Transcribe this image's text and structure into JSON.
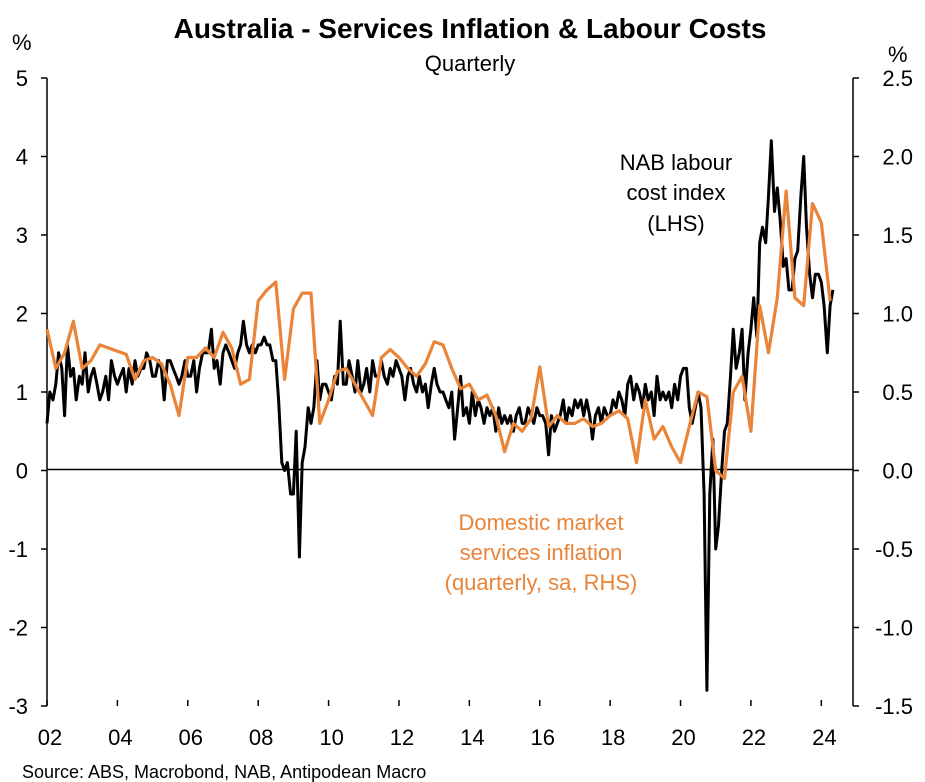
{
  "chart_data": {
    "type": "line",
    "title": "Australia - Services Inflation & Labour Costs",
    "subtitle": "Quarterly",
    "source": "Source: ABS, Macrobond, NAB, Antipodean Macro",
    "left_axis": {
      "unit": "%",
      "range": [
        -3,
        5
      ],
      "ticks": [
        "5",
        "4",
        "3",
        "2",
        "1",
        "0",
        "-1",
        "-2",
        "-3"
      ]
    },
    "right_axis": {
      "unit": "%",
      "range": [
        -1.5,
        2.5
      ],
      "ticks": [
        "2.5",
        "2.0",
        "1.5",
        "1.0",
        "0.5",
        "0.0",
        "-0.5",
        "-1.0",
        "-1.5"
      ]
    },
    "x_axis": {
      "range": [
        2002,
        2024.9
      ],
      "ticks": [
        "02",
        "04",
        "06",
        "08",
        "10",
        "12",
        "14",
        "16",
        "18",
        "20",
        "22",
        "24"
      ]
    },
    "series": [
      {
        "name": "NAB labour cost index",
        "axis": "left",
        "color": "#000000",
        "label": [
          "NAB labour",
          "cost index",
          "(LHS)"
        ],
        "x": [
          2002.0,
          2002.08,
          2002.17,
          2002.25,
          2002.33,
          2002.42,
          2002.5,
          2002.58,
          2002.67,
          2002.75,
          2002.83,
          2002.92,
          2003.0,
          2003.08,
          2003.17,
          2003.25,
          2003.33,
          2003.42,
          2003.5,
          2003.58,
          2003.67,
          2003.75,
          2003.83,
          2003.92,
          2004.0,
          2004.08,
          2004.17,
          2004.25,
          2004.33,
          2004.42,
          2004.5,
          2004.58,
          2004.67,
          2004.75,
          2004.83,
          2004.92,
          2005.0,
          2005.08,
          2005.17,
          2005.25,
          2005.33,
          2005.42,
          2005.5,
          2005.58,
          2005.67,
          2005.75,
          2005.83,
          2005.92,
          2006.0,
          2006.08,
          2006.17,
          2006.25,
          2006.33,
          2006.42,
          2006.5,
          2006.58,
          2006.67,
          2006.75,
          2006.83,
          2006.92,
          2007.0,
          2007.08,
          2007.17,
          2007.25,
          2007.33,
          2007.42,
          2007.5,
          2007.58,
          2007.67,
          2007.75,
          2007.83,
          2007.92,
          2008.0,
          2008.08,
          2008.17,
          2008.25,
          2008.33,
          2008.42,
          2008.5,
          2008.58,
          2008.67,
          2008.75,
          2008.83,
          2008.92,
          2009.0,
          2009.08,
          2009.17,
          2009.25,
          2009.33,
          2009.42,
          2009.5,
          2009.58,
          2009.67,
          2009.75,
          2009.83,
          2009.92,
          2010.0,
          2010.08,
          2010.17,
          2010.25,
          2010.33,
          2010.42,
          2010.5,
          2010.58,
          2010.67,
          2010.75,
          2010.83,
          2010.92,
          2011.0,
          2011.08,
          2011.17,
          2011.25,
          2011.33,
          2011.42,
          2011.5,
          2011.58,
          2011.67,
          2011.75,
          2011.83,
          2011.92,
          2012.0,
          2012.08,
          2012.17,
          2012.25,
          2012.33,
          2012.42,
          2012.5,
          2012.58,
          2012.67,
          2012.75,
          2012.83,
          2012.92,
          2013.0,
          2013.08,
          2013.17,
          2013.25,
          2013.33,
          2013.42,
          2013.5,
          2013.58,
          2013.67,
          2013.75,
          2013.83,
          2013.92,
          2014.0,
          2014.08,
          2014.17,
          2014.25,
          2014.33,
          2014.42,
          2014.5,
          2014.58,
          2014.67,
          2014.75,
          2014.83,
          2014.92,
          2015.0,
          2015.08,
          2015.17,
          2015.25,
          2015.33,
          2015.42,
          2015.5,
          2015.58,
          2015.67,
          2015.75,
          2015.83,
          2015.92,
          2016.0,
          2016.08,
          2016.17,
          2016.25,
          2016.33,
          2016.42,
          2016.5,
          2016.58,
          2016.67,
          2016.75,
          2016.83,
          2016.92,
          2017.0,
          2017.08,
          2017.17,
          2017.25,
          2017.33,
          2017.42,
          2017.5,
          2017.58,
          2017.67,
          2017.75,
          2017.83,
          2017.92,
          2018.0,
          2018.08,
          2018.17,
          2018.25,
          2018.33,
          2018.42,
          2018.5,
          2018.58,
          2018.67,
          2018.75,
          2018.83,
          2018.92,
          2019.0,
          2019.08,
          2019.17,
          2019.25,
          2019.33,
          2019.42,
          2019.5,
          2019.58,
          2019.67,
          2019.75,
          2019.83,
          2019.92,
          2020.0,
          2020.08,
          2020.17,
          2020.25,
          2020.33,
          2020.42,
          2020.5,
          2020.58,
          2020.67,
          2020.75,
          2020.83,
          2020.92,
          2021.0,
          2021.08,
          2021.17,
          2021.25,
          2021.33,
          2021.42,
          2021.5,
          2021.58,
          2021.67,
          2021.75,
          2021.83,
          2021.92,
          2022.0,
          2022.08,
          2022.17,
          2022.25,
          2022.33,
          2022.42,
          2022.5,
          2022.58,
          2022.67,
          2022.75,
          2022.83,
          2022.92,
          2023.0,
          2023.08,
          2023.17,
          2023.25,
          2023.33,
          2023.42,
          2023.5,
          2023.58,
          2023.67,
          2023.75,
          2023.83,
          2023.92,
          2024.0,
          2024.08,
          2024.17,
          2024.25,
          2024.33
        ],
        "values": [
          0.6,
          1.0,
          0.9,
          1.1,
          1.5,
          1.3,
          0.7,
          1.6,
          1.2,
          1.3,
          0.9,
          1.2,
          1.1,
          1.5,
          1.0,
          1.2,
          1.3,
          1.1,
          0.9,
          1.0,
          1.2,
          0.9,
          1.4,
          1.2,
          1.1,
          1.2,
          1.3,
          1.0,
          1.3,
          1.1,
          1.4,
          1.2,
          1.3,
          1.3,
          1.5,
          1.4,
          1.2,
          1.2,
          1.4,
          1.3,
          0.9,
          1.4,
          1.4,
          1.3,
          1.2,
          1.1,
          1.2,
          1.4,
          1.2,
          1.2,
          1.4,
          1.0,
          1.3,
          1.5,
          1.5,
          1.5,
          1.8,
          1.3,
          1.4,
          1.1,
          1.5,
          1.6,
          1.5,
          1.4,
          1.3,
          1.5,
          1.6,
          1.9,
          1.6,
          1.5,
          1.6,
          1.5,
          1.6,
          1.6,
          1.7,
          1.6,
          1.6,
          1.4,
          1.4,
          0.9,
          0.1,
          0.0,
          0.1,
          -0.3,
          -0.3,
          0.5,
          -1.1,
          0.1,
          0.3,
          0.8,
          0.6,
          0.8,
          1.4,
          0.9,
          1.1,
          1.1,
          1.0,
          0.9,
          1.2,
          1.1,
          1.9,
          1.1,
          1.1,
          1.4,
          1.2,
          1.0,
          1.4,
          1.0,
          1.1,
          1.3,
          1.0,
          1.4,
          1.2,
          1.2,
          1.4,
          1.2,
          1.1,
          1.3,
          1.2,
          1.4,
          1.3,
          1.2,
          0.9,
          1.2,
          1.3,
          1.1,
          1.0,
          1.2,
          1.0,
          1.1,
          0.8,
          1.1,
          1.3,
          1.1,
          1.0,
          1.0,
          0.9,
          0.8,
          1.0,
          0.4,
          0.8,
          1.2,
          0.7,
          0.8,
          0.6,
          1.0,
          0.7,
          0.9,
          0.8,
          0.6,
          0.8,
          0.7,
          0.8,
          0.5,
          0.8,
          0.6,
          0.7,
          0.6,
          0.7,
          0.5,
          0.7,
          0.8,
          0.6,
          0.6,
          0.8,
          0.7,
          0.6,
          0.8,
          0.7,
          0.7,
          0.6,
          0.2,
          0.7,
          0.5,
          0.6,
          0.7,
          0.9,
          0.6,
          0.8,
          0.7,
          0.9,
          0.8,
          0.9,
          0.7,
          0.9,
          0.7,
          0.4,
          0.7,
          0.8,
          0.6,
          0.8,
          0.7,
          0.7,
          0.9,
          0.8,
          1.0,
          0.9,
          0.7,
          1.1,
          1.2,
          0.9,
          1.1,
          1.0,
          0.8,
          1.1,
          0.9,
          1.0,
          0.7,
          1.2,
          0.9,
          1.0,
          0.9,
          1.0,
          0.8,
          1.1,
          0.9,
          1.2,
          1.3,
          1.3,
          0.8,
          0.6,
          0.8,
          1.0,
          0.8,
          -0.3,
          -2.8,
          -0.3,
          0.4,
          -1.0,
          -0.7,
          0.0,
          0.5,
          0.6,
          1.2,
          1.8,
          1.3,
          1.5,
          1.8,
          0.9,
          1.5,
          1.8,
          2.2,
          1.7,
          2.9,
          3.1,
          2.9,
          3.5,
          4.2,
          3.3,
          3.6,
          3.2,
          2.6,
          2.7,
          2.3,
          2.3,
          2.7,
          2.8,
          3.5,
          4.0,
          3.1,
          2.5,
          2.2,
          2.5,
          2.5,
          2.4,
          2.1,
          1.5,
          2.1,
          2.3
        ]
      },
      {
        "name": "Domestic market services inflation",
        "axis": "right",
        "color": "#e98438",
        "label": [
          "Domestic market",
          "services inflation",
          "(quarterly, sa, RHS)"
        ],
        "x": [
          2002.0,
          2002.25,
          2002.5,
          2002.75,
          2003.0,
          2003.25,
          2003.5,
          2003.75,
          2004.0,
          2004.25,
          2004.5,
          2004.75,
          2005.0,
          2005.25,
          2005.5,
          2005.75,
          2006.0,
          2006.25,
          2006.5,
          2006.75,
          2007.0,
          2007.25,
          2007.5,
          2007.75,
          2008.0,
          2008.25,
          2008.5,
          2008.75,
          2009.0,
          2009.25,
          2009.5,
          2009.75,
          2010.0,
          2010.25,
          2010.5,
          2010.75,
          2011.0,
          2011.25,
          2011.5,
          2011.75,
          2012.0,
          2012.25,
          2012.5,
          2012.75,
          2013.0,
          2013.25,
          2013.5,
          2013.75,
          2014.0,
          2014.25,
          2014.5,
          2014.75,
          2015.0,
          2015.25,
          2015.5,
          2015.75,
          2016.0,
          2016.25,
          2016.5,
          2016.75,
          2017.0,
          2017.25,
          2017.5,
          2017.75,
          2018.0,
          2018.25,
          2018.5,
          2018.75,
          2019.0,
          2019.25,
          2019.5,
          2019.75,
          2020.0,
          2020.25,
          2020.5,
          2020.75,
          2021.0,
          2021.25,
          2021.5,
          2021.75,
          2022.0,
          2022.25,
          2022.5,
          2022.75,
          2023.0,
          2023.25,
          2023.5,
          2023.75,
          2024.0,
          2024.25
        ],
        "values": [
          0.9,
          0.65,
          0.75,
          0.95,
          0.65,
          0.7,
          0.8,
          0.78,
          0.76,
          0.74,
          0.58,
          0.7,
          0.72,
          0.68,
          0.55,
          0.35,
          0.72,
          0.72,
          0.78,
          0.72,
          0.88,
          0.78,
          0.55,
          0.58,
          1.08,
          1.15,
          1.2,
          0.58,
          1.03,
          1.13,
          1.13,
          0.3,
          0.45,
          0.63,
          0.65,
          0.55,
          0.45,
          0.35,
          0.72,
          0.77,
          0.72,
          0.65,
          0.6,
          0.68,
          0.82,
          0.8,
          0.65,
          0.52,
          0.55,
          0.45,
          0.48,
          0.35,
          0.12,
          0.3,
          0.25,
          0.33,
          0.66,
          0.28,
          0.35,
          0.3,
          0.3,
          0.33,
          0.28,
          0.3,
          0.35,
          0.38,
          0.33,
          0.05,
          0.45,
          0.2,
          0.28,
          0.15,
          0.05,
          0.28,
          0.5,
          0.47,
          0.0,
          -0.05,
          0.5,
          0.6,
          0.25,
          1.05,
          0.75,
          1.1,
          1.78,
          1.1,
          1.05,
          1.7,
          1.58,
          1.08
        ]
      }
    ]
  }
}
